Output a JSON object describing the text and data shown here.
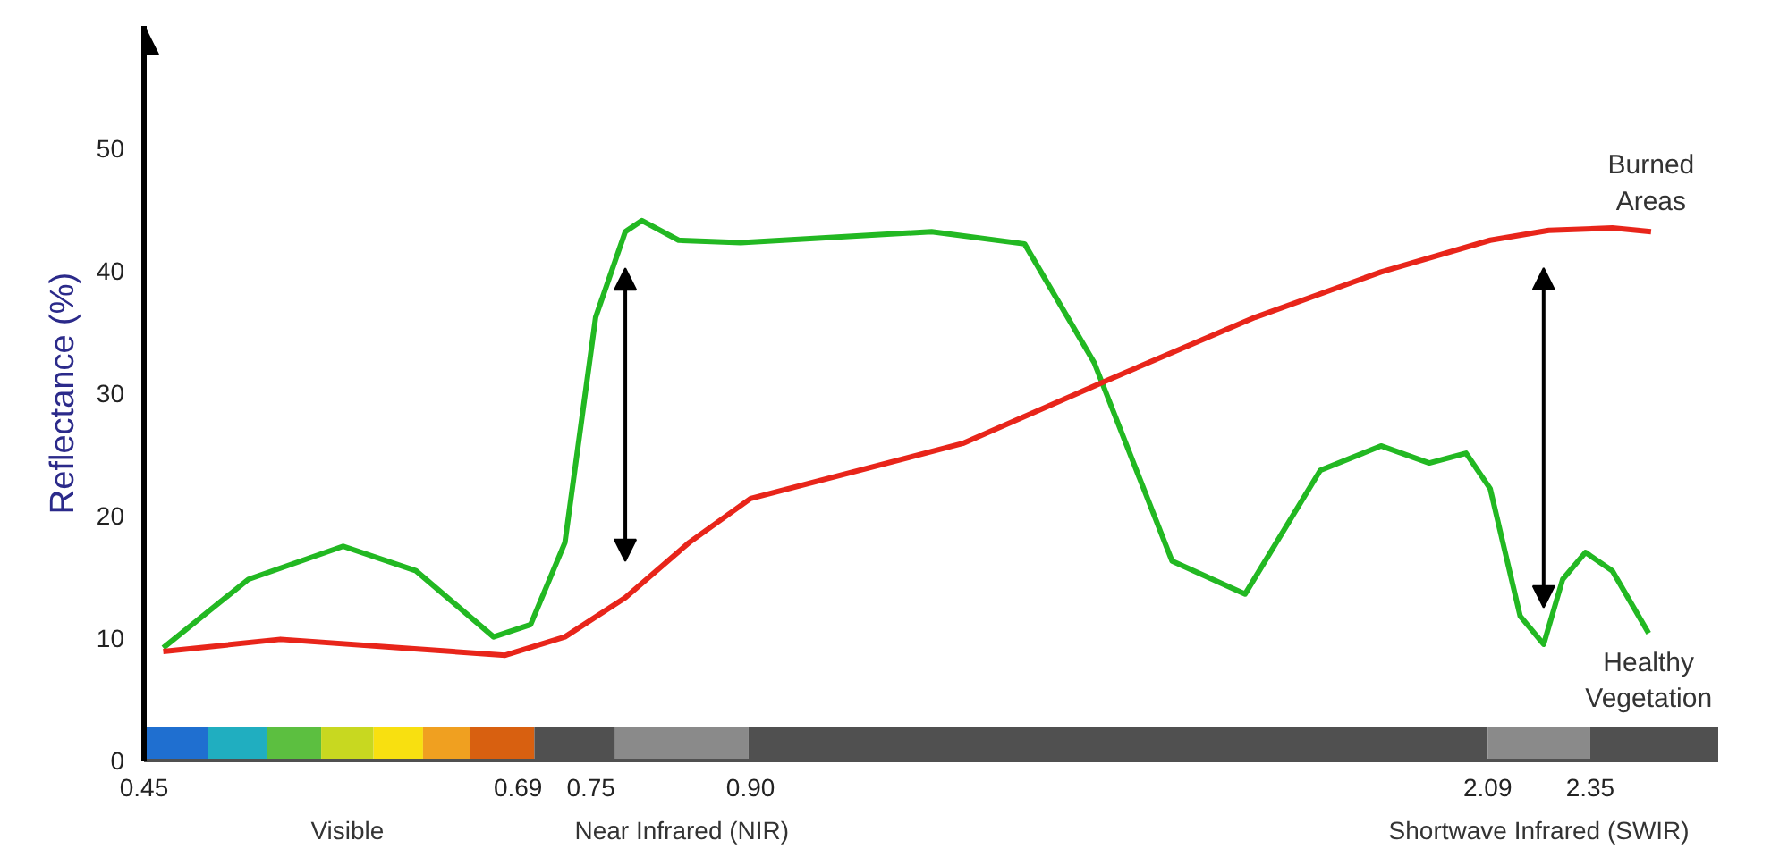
{
  "chart_data": {
    "type": "line",
    "ylabel": "Reflectance (%)",
    "log": "x",
    "xlim": [
      0.45,
      2.72
    ],
    "ylim": [
      0,
      60
    ],
    "xticks": [
      0.45,
      0.69,
      0.75,
      {
        "value": 0.9,
        "label": "0.90"
      },
      2.09,
      2.35
    ],
    "yticks": [
      0,
      10,
      20,
      30,
      40,
      50
    ],
    "grid": false,
    "legend": false,
    "marker": "none",
    "line_style": "solid",
    "series": [
      {
        "name": "Healthy Vegetation",
        "color": "#22b822",
        "x": [
          0.46,
          0.507,
          0.565,
          0.614,
          0.671,
          0.7,
          0.728,
          0.754,
          0.78,
          0.795,
          0.829,
          0.89,
          1.107,
          1.231,
          1.333,
          1.457,
          1.584,
          1.726,
          1.85,
          1.955,
          2.039,
          2.096,
          2.169,
          2.228,
          2.277,
          2.337,
          2.41,
          2.512
        ],
        "values": [
          9.2,
          14.8,
          17.5,
          15.5,
          10.1,
          11.1,
          17.8,
          36.2,
          43.2,
          44.1,
          42.5,
          42.3,
          43.2,
          42.2,
          32.5,
          16.3,
          13.6,
          23.7,
          25.7,
          24.3,
          25.1,
          22.2,
          11.8,
          9.5,
          14.8,
          17,
          15.5,
          10.4
        ]
      },
      {
        "name": "Burned Areas",
        "color": "#e8251a",
        "x": [
          0.46,
          0.526,
          0.604,
          0.68,
          0.728,
          0.78,
          0.839,
          0.9,
          1.147,
          1.355,
          1.602,
          1.85,
          2.096,
          2.241,
          2.41,
          2.519
        ],
        "values": [
          8.9,
          9.9,
          9.2,
          8.6,
          10.1,
          13.3,
          17.8,
          21.4,
          25.9,
          31.1,
          36.2,
          39.9,
          42.5,
          43.3,
          43.5,
          43.2
        ]
      }
    ],
    "bands": [
      {
        "axis": "x",
        "from": 0.45,
        "to": 0.484,
        "color": "#1f6fd0"
      },
      {
        "axis": "x",
        "from": 0.484,
        "to": 0.518,
        "color": "#20aec0"
      },
      {
        "axis": "x",
        "from": 0.518,
        "to": 0.551,
        "color": "#5cbf40"
      },
      {
        "axis": "x",
        "from": 0.551,
        "to": 0.585,
        "color": "#c8d820",
        "label": "Visible"
      },
      {
        "axis": "x",
        "from": 0.585,
        "to": 0.619,
        "color": "#f8e010"
      },
      {
        "axis": "x",
        "from": 0.619,
        "to": 0.653,
        "color": "#f0a020"
      },
      {
        "axis": "x",
        "from": 0.653,
        "to": 0.703,
        "color": "#d86010"
      },
      {
        "axis": "x",
        "from": 0.703,
        "to": 0.771,
        "color": "#505050"
      },
      {
        "axis": "x",
        "from": 0.771,
        "to": 0.898,
        "color": "#8a8a8a",
        "label": "Near Infrared (NIR)"
      },
      {
        "axis": "x",
        "from": 0.898,
        "to": 2.09,
        "color": "#505050"
      },
      {
        "axis": "x",
        "from": 2.09,
        "to": 2.35,
        "color": "#8a8a8a",
        "label": "Shortwave Infrared (SWIR)"
      },
      {
        "axis": "x",
        "from": 2.35,
        "to": 2.72,
        "color": "#505050"
      }
    ]
  }
}
